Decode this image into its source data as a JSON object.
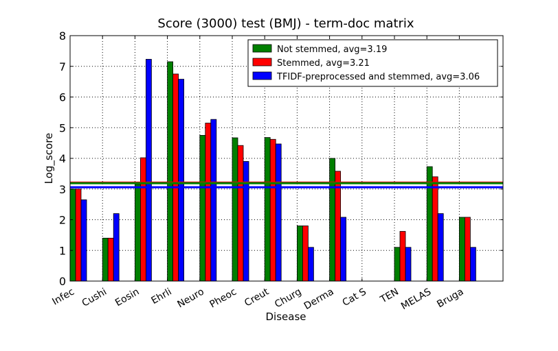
{
  "chart_data": {
    "type": "bar",
    "title": "Score (3000) test (BMJ) - term-doc matrix",
    "xlabel": "Disease",
    "ylabel": "Log_score",
    "ylim": [
      0,
      8
    ],
    "yticks": [
      "0",
      "1",
      "2",
      "3",
      "4",
      "5",
      "6",
      "7",
      "8"
    ],
    "grid": true,
    "legend_position": "top-right",
    "categories": [
      "Infec",
      "Cushi",
      "Eosin",
      "Ehrli",
      "Neuro",
      "Pheoc",
      "Creut",
      "Churg",
      "Derma",
      "Cat S",
      "TEN",
      "MELAS",
      "Bruga"
    ],
    "series": [
      {
        "name": "Not stemmed, avg=3.19",
        "color": "#007f00",
        "values": [
          3.0,
          1.4,
          3.15,
          7.15,
          4.75,
          4.67,
          4.68,
          1.8,
          4.0,
          0,
          1.1,
          3.73,
          2.08
        ]
      },
      {
        "name": "Stemmed, avg=3.21",
        "color": "#ff0000",
        "values": [
          3.0,
          1.4,
          4.02,
          6.75,
          5.15,
          4.42,
          4.62,
          1.8,
          3.58,
          0,
          1.62,
          3.4,
          2.08
        ]
      },
      {
        "name": "TFIDF-preprocessed and stemmed, avg=3.06",
        "color": "#0000ff",
        "values": [
          2.65,
          2.2,
          7.23,
          6.58,
          5.27,
          3.9,
          4.47,
          1.1,
          2.08,
          0,
          1.1,
          2.2,
          1.1
        ]
      }
    ],
    "reference_lines": [
      {
        "value": 3.21,
        "color": "#ff0000"
      },
      {
        "value": 3.19,
        "color": "#007f00"
      },
      {
        "value": 3.06,
        "color": "#0000ff"
      }
    ]
  }
}
